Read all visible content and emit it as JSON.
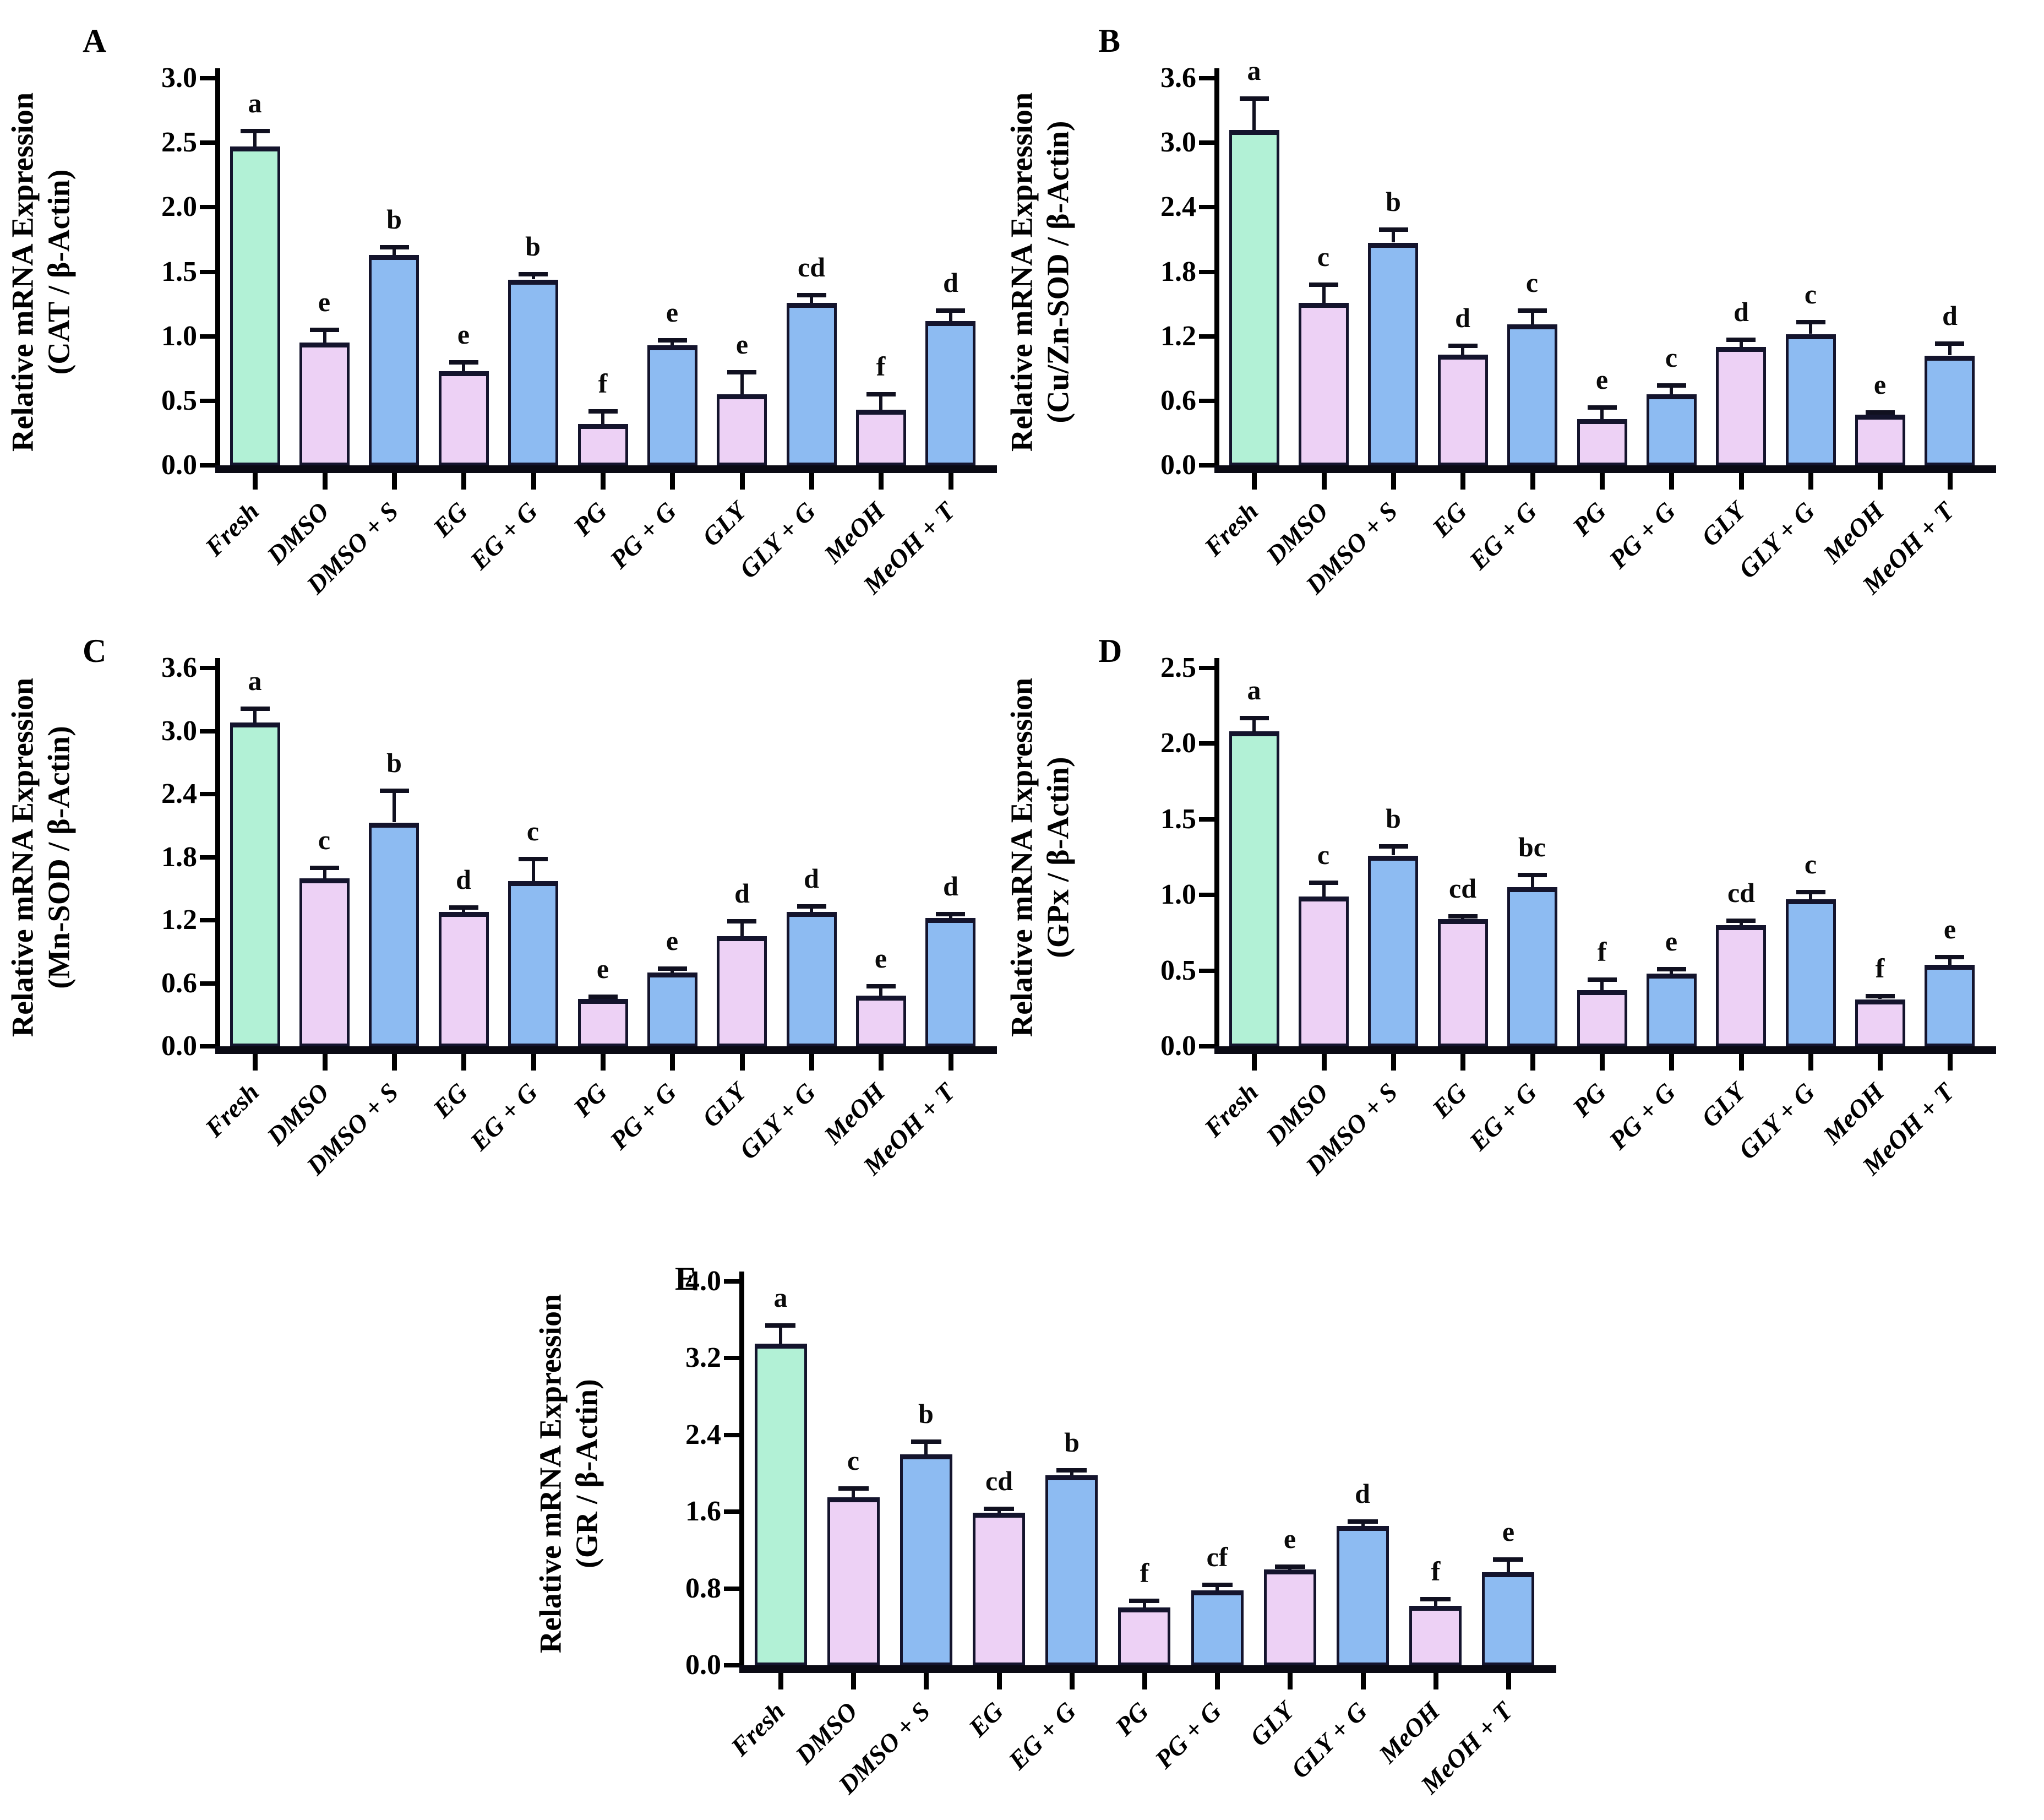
{
  "figure": {
    "description_visible_text_only": "Five-panel bar figure of relative mRNA expression normalized to beta-Actin",
    "panel_labels": [
      "A",
      "B",
      "C",
      "D",
      "E"
    ]
  },
  "colors": {
    "fresh": "#b2f1d6",
    "cryoprotectant": "#edd1f5",
    "supplemented": "#8dbbf2",
    "bar_border": "#14142d",
    "axis": "#000000",
    "error_bar": "#101020"
  },
  "chart_data": [
    {
      "type": "bar",
      "panel_label": "A",
      "ylabel_line1": "Relative mRNA Expression",
      "ylabel_line2": "(CAT / β-Actin)",
      "xlabel": "",
      "grid": false,
      "legend": false,
      "ylim": [
        0.0,
        3.0
      ],
      "yticks": [
        "0.0",
        "0.5",
        "1.0",
        "1.5",
        "2.0",
        "2.5",
        "3.0"
      ],
      "categories": [
        "Fresh",
        "DMSO",
        "DMSO + S",
        "EG",
        "EG + G",
        "PG",
        "PG + G",
        "GLY",
        "GLY + G",
        "MeOH",
        "MeOH + T"
      ],
      "values": [
        2.47,
        0.95,
        1.63,
        0.73,
        1.44,
        0.32,
        0.93,
        0.55,
        1.26,
        0.43,
        1.12
      ],
      "errors": [
        0.12,
        0.1,
        0.06,
        0.07,
        0.04,
        0.1,
        0.04,
        0.17,
        0.06,
        0.12,
        0.08
      ],
      "sig_letters": [
        "a",
        "e",
        "b",
        "e",
        "b",
        "f",
        "e",
        "e",
        "cd",
        "f",
        "d"
      ],
      "bar_roles": [
        "fresh",
        "cryoprotectant",
        "supplemented",
        "cryoprotectant",
        "supplemented",
        "cryoprotectant",
        "supplemented",
        "cryoprotectant",
        "supplemented",
        "cryoprotectant",
        "supplemented"
      ]
    },
    {
      "type": "bar",
      "panel_label": "B",
      "ylabel_line1": "Relative mRNA Expression",
      "ylabel_line2": "(Cu/Zn-SOD / β-Actin)",
      "xlabel": "",
      "grid": false,
      "legend": false,
      "ylim": [
        0.0,
        3.6
      ],
      "yticks": [
        "0.0",
        "0.6",
        "1.2",
        "1.8",
        "2.4",
        "3.0",
        "3.6"
      ],
      "categories": [
        "Fresh",
        "DMSO",
        "DMSO + S",
        "EG",
        "EG + G",
        "PG",
        "PG + G",
        "GLY",
        "GLY + G",
        "MeOH",
        "MeOH + T"
      ],
      "values": [
        3.12,
        1.51,
        2.07,
        1.03,
        1.31,
        0.43,
        0.66,
        1.1,
        1.22,
        0.47,
        1.02
      ],
      "errors": [
        0.29,
        0.17,
        0.12,
        0.08,
        0.13,
        0.11,
        0.08,
        0.07,
        0.11,
        0.02,
        0.11
      ],
      "sig_letters": [
        "a",
        "c",
        "b",
        "d",
        "c",
        "e",
        "c",
        "d",
        "c",
        "e",
        "d"
      ],
      "bar_roles": [
        "fresh",
        "cryoprotectant",
        "supplemented",
        "cryoprotectant",
        "supplemented",
        "cryoprotectant",
        "supplemented",
        "cryoprotectant",
        "supplemented",
        "cryoprotectant",
        "supplemented"
      ]
    },
    {
      "type": "bar",
      "panel_label": "C",
      "ylabel_line1": "Relative mRNA Expression",
      "ylabel_line2": "(Mn-SOD / β-Actin)",
      "xlabel": "",
      "grid": false,
      "legend": false,
      "ylim": [
        0.0,
        3.6
      ],
      "yticks": [
        "0.0",
        "0.6",
        "1.2",
        "1.8",
        "2.4",
        "3.0",
        "3.6"
      ],
      "categories": [
        "Fresh",
        "DMSO",
        "DMSO + S",
        "EG",
        "EG + G",
        "PG",
        "PG + G",
        "GLY",
        "GLY + G",
        "MeOH",
        "MeOH + T"
      ],
      "values": [
        3.08,
        1.6,
        2.13,
        1.28,
        1.57,
        0.45,
        0.7,
        1.05,
        1.28,
        0.48,
        1.22
      ],
      "errors": [
        0.13,
        0.1,
        0.3,
        0.04,
        0.21,
        0.02,
        0.04,
        0.14,
        0.05,
        0.09,
        0.04
      ],
      "sig_letters": [
        "a",
        "c",
        "b",
        "d",
        "c",
        "e",
        "e",
        "d",
        "d",
        "e",
        "d"
      ],
      "bar_roles": [
        "fresh",
        "cryoprotectant",
        "supplemented",
        "cryoprotectant",
        "supplemented",
        "cryoprotectant",
        "supplemented",
        "cryoprotectant",
        "supplemented",
        "cryoprotectant",
        "supplemented"
      ]
    },
    {
      "type": "bar",
      "panel_label": "D",
      "ylabel_line1": "Relative mRNA Expression",
      "ylabel_line2": "(GPx / β-Actin)",
      "xlabel": "",
      "grid": false,
      "legend": false,
      "ylim": [
        0.0,
        2.5
      ],
      "yticks": [
        "0.0",
        "0.5",
        "1.0",
        "1.5",
        "2.0",
        "2.5"
      ],
      "categories": [
        "Fresh",
        "DMSO",
        "DMSO + S",
        "EG",
        "EG + G",
        "PG",
        "PG + G",
        "GLY",
        "GLY + G",
        "MeOH",
        "MeOH + T"
      ],
      "values": [
        2.08,
        0.99,
        1.26,
        0.84,
        1.05,
        0.37,
        0.48,
        0.8,
        0.97,
        0.31,
        0.54
      ],
      "errors": [
        0.09,
        0.09,
        0.06,
        0.02,
        0.08,
        0.07,
        0.03,
        0.03,
        0.05,
        0.02,
        0.05
      ],
      "sig_letters": [
        "a",
        "c",
        "b",
        "cd",
        "bc",
        "f",
        "e",
        "cd",
        "c",
        "f",
        "e"
      ],
      "bar_roles": [
        "fresh",
        "cryoprotectant",
        "supplemented",
        "cryoprotectant",
        "supplemented",
        "cryoprotectant",
        "supplemented",
        "cryoprotectant",
        "supplemented",
        "cryoprotectant",
        "supplemented"
      ]
    },
    {
      "type": "bar",
      "panel_label": "E",
      "ylabel_line1": "Relative mRNA Expression",
      "ylabel_line2": "(GR / β-Actin)",
      "xlabel": "",
      "grid": false,
      "legend": false,
      "ylim": [
        0.0,
        4.0
      ],
      "yticks": [
        "0.0",
        "0.8",
        "1.6",
        "2.4",
        "3.2",
        "4.0"
      ],
      "categories": [
        "Fresh",
        "DMSO",
        "DMSO + S",
        "EG",
        "EG + G",
        "PG",
        "PG + G",
        "GLY",
        "GLY + G",
        "MeOH",
        "MeOH + T"
      ],
      "values": [
        3.35,
        1.75,
        2.2,
        1.59,
        1.98,
        0.6,
        0.78,
        1.0,
        1.45,
        0.62,
        0.97
      ],
      "errors": [
        0.19,
        0.09,
        0.13,
        0.04,
        0.05,
        0.07,
        0.06,
        0.03,
        0.05,
        0.07,
        0.13
      ],
      "sig_letters": [
        "a",
        "c",
        "b",
        "cd",
        "b",
        "f",
        "cf",
        "e",
        "d",
        "f",
        "e"
      ],
      "bar_roles": [
        "fresh",
        "cryoprotectant",
        "supplemented",
        "cryoprotectant",
        "supplemented",
        "cryoprotectant",
        "supplemented",
        "cryoprotectant",
        "supplemented",
        "cryoprotectant",
        "supplemented"
      ]
    }
  ]
}
